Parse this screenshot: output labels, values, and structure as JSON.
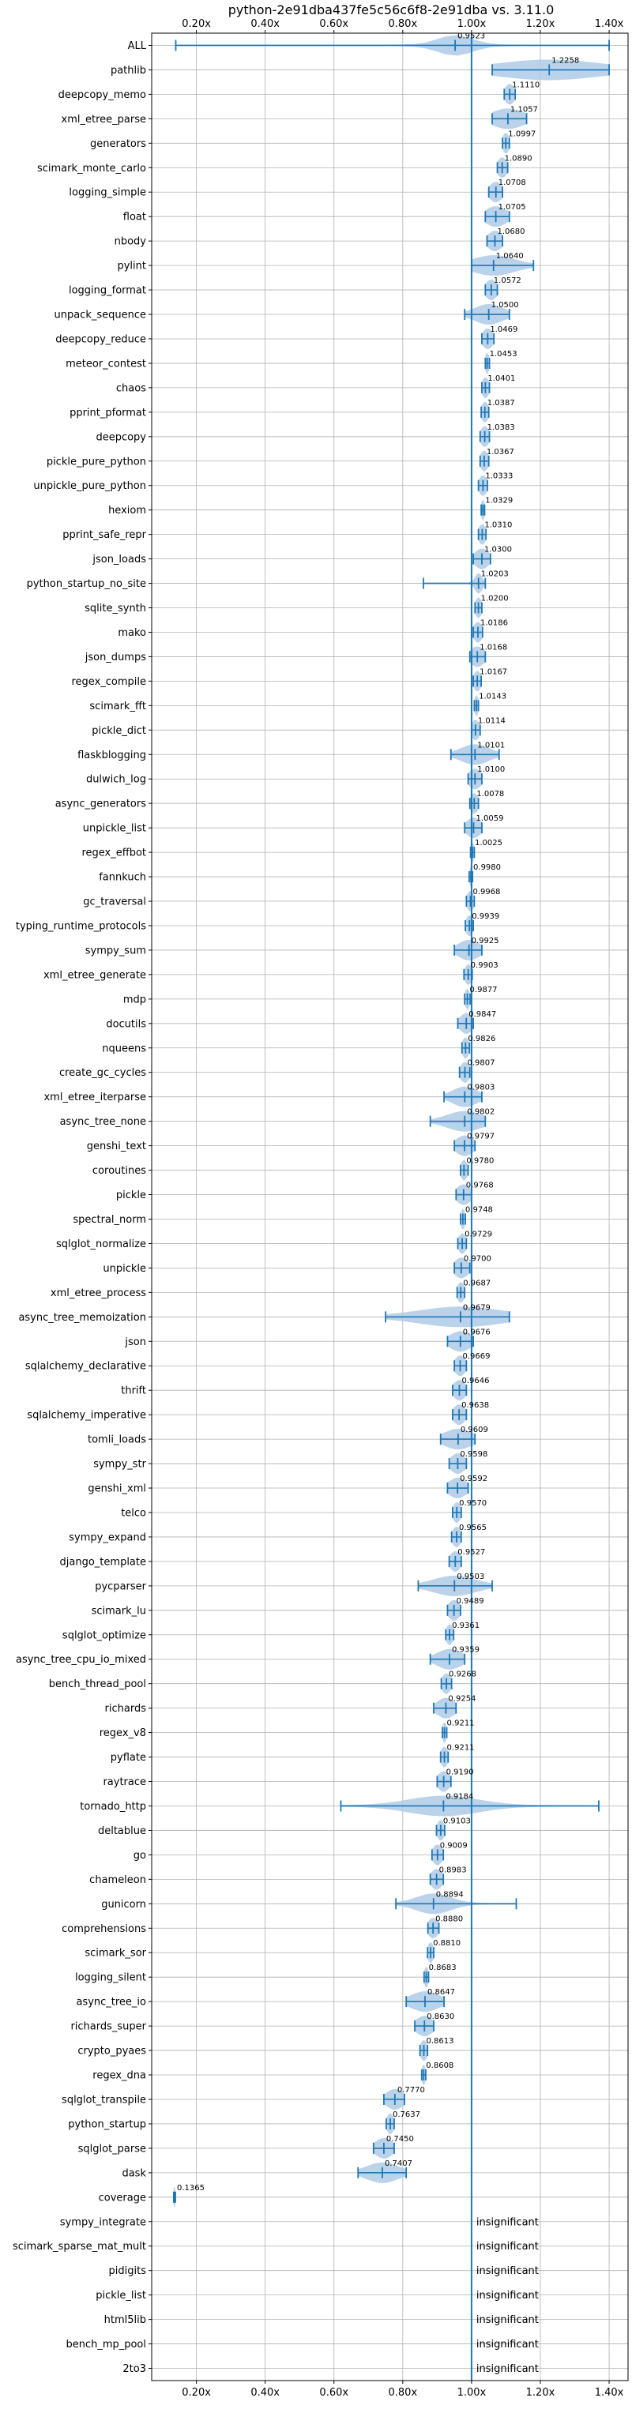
{
  "chart_data": {
    "type": "violin",
    "title": "python-2e91dba437fe5c56c6f8-2e91dba vs. 3.11.0",
    "xlabel": "",
    "ylabel": "",
    "xlim": [
      0.07,
      1.455
    ],
    "x_ticks": [
      0.2,
      0.4,
      0.6,
      0.8,
      1.0,
      1.2,
      1.4
    ],
    "x_tick_labels": [
      "0.20x",
      "0.40x",
      "0.60x",
      "0.80x",
      "1.00x",
      "1.20x",
      "1.40x"
    ],
    "reference_line": 1.0,
    "grid": true,
    "colors": {
      "violin": "#aecbe8",
      "stat": "#1f77b4",
      "reference": "#1f77b4"
    },
    "benchmarks": [
      {
        "name": "ALL",
        "label": "0.9523",
        "mean": 0.9523,
        "min": 0.14,
        "max": 1.4,
        "spread": 0.05
      },
      {
        "name": "pathlib",
        "label": "1.2258",
        "mean": 1.2258,
        "min": 1.06,
        "max": 1.4,
        "spread": 0.15
      },
      {
        "name": "deepcopy_memo",
        "label": "1.1110",
        "mean": 1.111,
        "min": 1.095,
        "max": 1.127,
        "spread": 0.014
      },
      {
        "name": "xml_etree_parse",
        "label": "1.1057",
        "mean": 1.1057,
        "min": 1.06,
        "max": 1.16,
        "spread": 0.045
      },
      {
        "name": "generators",
        "label": "1.0997",
        "mean": 1.0997,
        "min": 1.09,
        "max": 1.11,
        "spread": 0.009
      },
      {
        "name": "scimark_monte_carlo",
        "label": "1.0890",
        "mean": 1.089,
        "min": 1.075,
        "max": 1.105,
        "spread": 0.013
      },
      {
        "name": "logging_simple",
        "label": "1.0708",
        "mean": 1.0708,
        "min": 1.05,
        "max": 1.09,
        "spread": 0.018
      },
      {
        "name": "float",
        "label": "1.0705",
        "mean": 1.0705,
        "min": 1.04,
        "max": 1.11,
        "spread": 0.03
      },
      {
        "name": "nbody",
        "label": "1.0680",
        "mean": 1.068,
        "min": 1.045,
        "max": 1.09,
        "spread": 0.02
      },
      {
        "name": "pylint",
        "label": "1.0640",
        "mean": 1.064,
        "min": 1.0,
        "max": 1.18,
        "spread": 0.06
      },
      {
        "name": "logging_format",
        "label": "1.0572",
        "mean": 1.0572,
        "min": 1.04,
        "max": 1.075,
        "spread": 0.016
      },
      {
        "name": "unpack_sequence",
        "label": "1.0500",
        "mean": 1.05,
        "min": 0.98,
        "max": 1.11,
        "spread": 0.04
      },
      {
        "name": "deepcopy_reduce",
        "label": "1.0469",
        "mean": 1.0469,
        "min": 1.03,
        "max": 1.065,
        "spread": 0.015
      },
      {
        "name": "meteor_contest",
        "label": "1.0453",
        "mean": 1.0453,
        "min": 1.04,
        "max": 1.052,
        "spread": 0.006
      },
      {
        "name": "chaos",
        "label": "1.0401",
        "mean": 1.0401,
        "min": 1.03,
        "max": 1.052,
        "spread": 0.01
      },
      {
        "name": "pprint_pformat",
        "label": "1.0387",
        "mean": 1.0387,
        "min": 1.028,
        "max": 1.05,
        "spread": 0.01
      },
      {
        "name": "deepcopy",
        "label": "1.0383",
        "mean": 1.0383,
        "min": 1.025,
        "max": 1.052,
        "spread": 0.012
      },
      {
        "name": "pickle_pure_python",
        "label": "1.0367",
        "mean": 1.0367,
        "min": 1.025,
        "max": 1.05,
        "spread": 0.011
      },
      {
        "name": "unpickle_pure_python",
        "label": "1.0333",
        "mean": 1.0333,
        "min": 1.02,
        "max": 1.046,
        "spread": 0.011
      },
      {
        "name": "hexiom",
        "label": "1.0329",
        "mean": 1.0329,
        "min": 1.028,
        "max": 1.038,
        "spread": 0.005
      },
      {
        "name": "pprint_safe_repr",
        "label": "1.0310",
        "mean": 1.031,
        "min": 1.02,
        "max": 1.042,
        "spread": 0.01
      },
      {
        "name": "json_loads",
        "label": "1.0300",
        "mean": 1.03,
        "min": 1.005,
        "max": 1.055,
        "spread": 0.02
      },
      {
        "name": "python_startup_no_site",
        "label": "1.0203",
        "mean": 1.0203,
        "min": 0.86,
        "max": 1.04,
        "spread": 0.01
      },
      {
        "name": "sqlite_synth",
        "label": "1.0200",
        "mean": 1.02,
        "min": 1.01,
        "max": 1.03,
        "spread": 0.009
      },
      {
        "name": "mako",
        "label": "1.0186",
        "mean": 1.0186,
        "min": 1.005,
        "max": 1.032,
        "spread": 0.012
      },
      {
        "name": "json_dumps",
        "label": "1.0168",
        "mean": 1.0168,
        "min": 0.995,
        "max": 1.04,
        "spread": 0.02
      },
      {
        "name": "regex_compile",
        "label": "1.0167",
        "mean": 1.0167,
        "min": 1.005,
        "max": 1.028,
        "spread": 0.01
      },
      {
        "name": "scimark_fft",
        "label": "1.0143",
        "mean": 1.0143,
        "min": 1.008,
        "max": 1.02,
        "spread": 0.006
      },
      {
        "name": "pickle_dict",
        "label": "1.0114",
        "mean": 1.0114,
        "min": 1.0,
        "max": 1.025,
        "spread": 0.011
      },
      {
        "name": "flaskblogging",
        "label": "1.0101",
        "mean": 1.0101,
        "min": 0.94,
        "max": 1.08,
        "spread": 0.04
      },
      {
        "name": "dulwich_log",
        "label": "1.0100",
        "mean": 1.01,
        "min": 0.99,
        "max": 1.03,
        "spread": 0.018
      },
      {
        "name": "async_generators",
        "label": "1.0078",
        "mean": 1.0078,
        "min": 0.995,
        "max": 1.02,
        "spread": 0.011
      },
      {
        "name": "unpickle_list",
        "label": "1.0059",
        "mean": 1.0059,
        "min": 0.98,
        "max": 1.03,
        "spread": 0.02
      },
      {
        "name": "regex_effbot",
        "label": "1.0025",
        "mean": 1.0025,
        "min": 0.997,
        "max": 1.008,
        "spread": 0.005
      },
      {
        "name": "fannkuch",
        "label": "0.9980",
        "mean": 0.998,
        "min": 0.993,
        "max": 1.003,
        "spread": 0.004
      },
      {
        "name": "gc_traversal",
        "label": "0.9968",
        "mean": 0.9968,
        "min": 0.985,
        "max": 1.008,
        "spread": 0.01
      },
      {
        "name": "typing_runtime_protocols",
        "label": "0.9939",
        "mean": 0.9939,
        "min": 0.982,
        "max": 1.005,
        "spread": 0.01
      },
      {
        "name": "sympy_sum",
        "label": "0.9925",
        "mean": 0.9925,
        "min": 0.95,
        "max": 1.03,
        "spread": 0.03
      },
      {
        "name": "xml_etree_generate",
        "label": "0.9903",
        "mean": 0.9903,
        "min": 0.978,
        "max": 1.002,
        "spread": 0.01
      },
      {
        "name": "mdp",
        "label": "0.9877",
        "mean": 0.9877,
        "min": 0.98,
        "max": 0.996,
        "spread": 0.007
      },
      {
        "name": "docutils",
        "label": "0.9847",
        "mean": 0.9847,
        "min": 0.96,
        "max": 1.005,
        "spread": 0.018
      },
      {
        "name": "nqueens",
        "label": "0.9826",
        "mean": 0.9826,
        "min": 0.972,
        "max": 0.994,
        "spread": 0.01
      },
      {
        "name": "create_gc_cycles",
        "label": "0.9807",
        "mean": 0.9807,
        "min": 0.965,
        "max": 0.995,
        "spread": 0.013
      },
      {
        "name": "xml_etree_iterparse",
        "label": "0.9803",
        "mean": 0.9803,
        "min": 0.92,
        "max": 1.03,
        "spread": 0.035
      },
      {
        "name": "async_tree_none",
        "label": "0.9802",
        "mean": 0.9802,
        "min": 0.88,
        "max": 1.04,
        "spread": 0.05
      },
      {
        "name": "genshi_text",
        "label": "0.9797",
        "mean": 0.9797,
        "min": 0.95,
        "max": 1.01,
        "spread": 0.025
      },
      {
        "name": "coroutines",
        "label": "0.9780",
        "mean": 0.978,
        "min": 0.968,
        "max": 0.99,
        "spread": 0.009
      },
      {
        "name": "pickle",
        "label": "0.9768",
        "mean": 0.9768,
        "min": 0.955,
        "max": 1.0,
        "spread": 0.02
      },
      {
        "name": "spectral_norm",
        "label": "0.9748",
        "mean": 0.9748,
        "min": 0.968,
        "max": 0.982,
        "spread": 0.006
      },
      {
        "name": "sqlglot_normalize",
        "label": "0.9729",
        "mean": 0.9729,
        "min": 0.96,
        "max": 0.985,
        "spread": 0.011
      },
      {
        "name": "unpickle",
        "label": "0.9700",
        "mean": 0.97,
        "min": 0.95,
        "max": 0.995,
        "spread": 0.02
      },
      {
        "name": "xml_etree_process",
        "label": "0.9687",
        "mean": 0.9687,
        "min": 0.958,
        "max": 0.98,
        "spread": 0.01
      },
      {
        "name": "async_tree_memoization",
        "label": "0.9679",
        "mean": 0.9679,
        "min": 0.75,
        "max": 1.11,
        "spread": 0.12
      },
      {
        "name": "json",
        "label": "0.9676",
        "mean": 0.9676,
        "min": 0.93,
        "max": 1.005,
        "spread": 0.03
      },
      {
        "name": "sqlalchemy_declarative",
        "label": "0.9669",
        "mean": 0.9669,
        "min": 0.95,
        "max": 0.985,
        "spread": 0.015
      },
      {
        "name": "thrift",
        "label": "0.9646",
        "mean": 0.9646,
        "min": 0.945,
        "max": 0.985,
        "spread": 0.017
      },
      {
        "name": "sqlalchemy_imperative",
        "label": "0.9638",
        "mean": 0.9638,
        "min": 0.945,
        "max": 0.985,
        "spread": 0.017
      },
      {
        "name": "tomli_loads",
        "label": "0.9609",
        "mean": 0.9609,
        "min": 0.91,
        "max": 1.01,
        "spread": 0.04
      },
      {
        "name": "sympy_str",
        "label": "0.9598",
        "mean": 0.9598,
        "min": 0.935,
        "max": 0.985,
        "spread": 0.02
      },
      {
        "name": "genshi_xml",
        "label": "0.9592",
        "mean": 0.9592,
        "min": 0.93,
        "max": 0.99,
        "spread": 0.025
      },
      {
        "name": "telco",
        "label": "0.9570",
        "mean": 0.957,
        "min": 0.945,
        "max": 0.97,
        "spread": 0.011
      },
      {
        "name": "sympy_expand",
        "label": "0.9565",
        "mean": 0.9565,
        "min": 0.942,
        "max": 0.97,
        "spread": 0.012
      },
      {
        "name": "django_template",
        "label": "0.9527",
        "mean": 0.9527,
        "min": 0.935,
        "max": 0.97,
        "spread": 0.015
      },
      {
        "name": "pycparser",
        "label": "0.9503",
        "mean": 0.9503,
        "min": 0.845,
        "max": 1.06,
        "spread": 0.06
      },
      {
        "name": "scimark_lu",
        "label": "0.9489",
        "mean": 0.9489,
        "min": 0.93,
        "max": 0.968,
        "spread": 0.016
      },
      {
        "name": "sqlglot_optimize",
        "label": "0.9361",
        "mean": 0.9361,
        "min": 0.925,
        "max": 0.948,
        "spread": 0.01
      },
      {
        "name": "async_tree_cpu_io_mixed",
        "label": "0.9359",
        "mean": 0.9359,
        "min": 0.88,
        "max": 0.98,
        "spread": 0.035
      },
      {
        "name": "bench_thread_pool",
        "label": "0.9268",
        "mean": 0.9268,
        "min": 0.912,
        "max": 0.942,
        "spread": 0.013
      },
      {
        "name": "richards",
        "label": "0.9254",
        "mean": 0.9254,
        "min": 0.89,
        "max": 0.955,
        "spread": 0.025
      },
      {
        "name": "regex_v8",
        "label": "0.9211",
        "mean": 0.9211,
        "min": 0.915,
        "max": 0.928,
        "spread": 0.006
      },
      {
        "name": "pyflate",
        "label": "0.9211",
        "mean": 0.9211,
        "min": 0.91,
        "max": 0.932,
        "spread": 0.01
      },
      {
        "name": "raytrace",
        "label": "0.9190",
        "mean": 0.919,
        "min": 0.9,
        "max": 0.94,
        "spread": 0.017
      },
      {
        "name": "tornado_http",
        "label": "0.9184",
        "mean": 0.9184,
        "min": 0.62,
        "max": 1.37,
        "spread": 0.1
      },
      {
        "name": "deltablue",
        "label": "0.9103",
        "mean": 0.9103,
        "min": 0.898,
        "max": 0.922,
        "spread": 0.01
      },
      {
        "name": "go",
        "label": "0.9009",
        "mean": 0.9009,
        "min": 0.885,
        "max": 0.918,
        "spread": 0.014
      },
      {
        "name": "chameleon",
        "label": "0.8983",
        "mean": 0.8983,
        "min": 0.88,
        "max": 0.918,
        "spread": 0.016
      },
      {
        "name": "gunicorn",
        "label": "0.8894",
        "mean": 0.8894,
        "min": 0.78,
        "max": 1.13,
        "spread": 0.05
      },
      {
        "name": "comprehensions",
        "label": "0.8880",
        "mean": 0.888,
        "min": 0.873,
        "max": 0.905,
        "spread": 0.014
      },
      {
        "name": "scimark_sor",
        "label": "0.8810",
        "mean": 0.881,
        "min": 0.872,
        "max": 0.89,
        "spread": 0.008
      },
      {
        "name": "logging_silent",
        "label": "0.8683",
        "mean": 0.8683,
        "min": 0.862,
        "max": 0.875,
        "spread": 0.006
      },
      {
        "name": "async_tree_io",
        "label": "0.8647",
        "mean": 0.8647,
        "min": 0.81,
        "max": 0.92,
        "spread": 0.04
      },
      {
        "name": "richards_super",
        "label": "0.8630",
        "mean": 0.863,
        "min": 0.835,
        "max": 0.89,
        "spread": 0.024
      },
      {
        "name": "crypto_pyaes",
        "label": "0.8613",
        "mean": 0.8613,
        "min": 0.85,
        "max": 0.872,
        "spread": 0.01
      },
      {
        "name": "regex_dna",
        "label": "0.8608",
        "mean": 0.8608,
        "min": 0.855,
        "max": 0.867,
        "spread": 0.005
      },
      {
        "name": "sqlglot_transpile",
        "label": "0.7770",
        "mean": 0.777,
        "min": 0.745,
        "max": 0.805,
        "spread": 0.025
      },
      {
        "name": "python_startup",
        "label": "0.7637",
        "mean": 0.7637,
        "min": 0.752,
        "max": 0.775,
        "spread": 0.01
      },
      {
        "name": "sqlglot_parse",
        "label": "0.7450",
        "mean": 0.745,
        "min": 0.715,
        "max": 0.775,
        "spread": 0.025
      },
      {
        "name": "dask",
        "label": "0.7407",
        "mean": 0.7407,
        "min": 0.67,
        "max": 0.81,
        "spread": 0.045
      },
      {
        "name": "coverage",
        "label": "0.1365",
        "mean": 0.1365,
        "min": 0.134,
        "max": 0.139,
        "spread": 0.003
      },
      {
        "name": "sympy_integrate",
        "label": "insignificant",
        "insignificant": true
      },
      {
        "name": "scimark_sparse_mat_mult",
        "label": "insignificant",
        "insignificant": true
      },
      {
        "name": "pidigits",
        "label": "insignificant",
        "insignificant": true
      },
      {
        "name": "pickle_list",
        "label": "insignificant",
        "insignificant": true
      },
      {
        "name": "html5lib",
        "label": "insignificant",
        "insignificant": true
      },
      {
        "name": "bench_mp_pool",
        "label": "insignificant",
        "insignificant": true
      },
      {
        "name": "2to3",
        "label": "insignificant",
        "insignificant": true
      }
    ]
  }
}
